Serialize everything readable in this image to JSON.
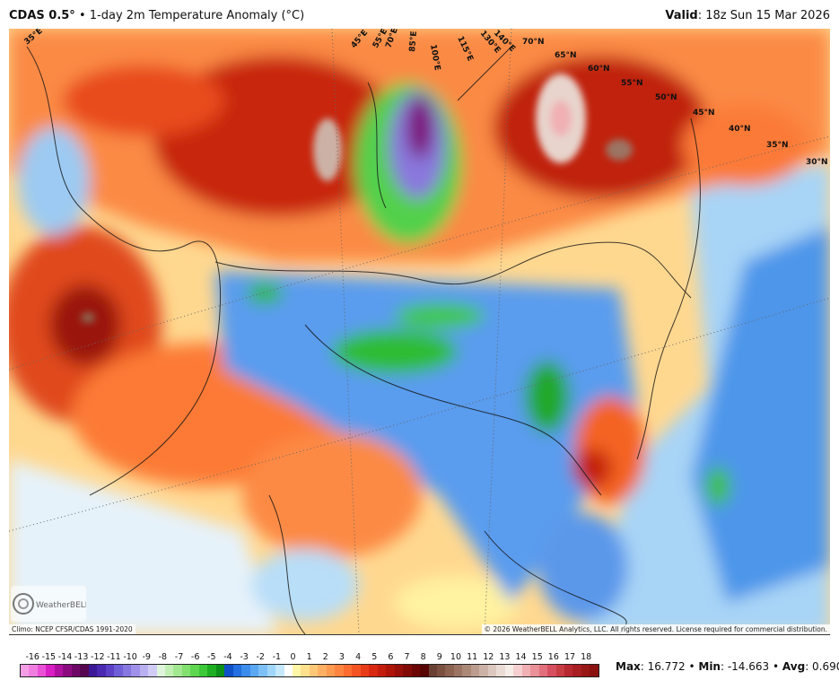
{
  "header": {
    "model": "CDAS 0.5°",
    "separator": "•",
    "title": "1-day 2m Temperature Anomaly (°C)",
    "valid_label": "Valid",
    "valid_time": "18z Sun 15 Mar 2026"
  },
  "map": {
    "longitude_labels": [
      "35°E",
      "45°E",
      "55°E",
      "70°E",
      "85°E",
      "100°E",
      "115°E",
      "130°E",
      "140°E"
    ],
    "latitude_labels": [
      "70°N",
      "65°N",
      "60°N",
      "55°N",
      "50°N",
      "45°N",
      "40°N",
      "35°N",
      "30°N"
    ],
    "climo": "Climo: NCEP CFSR/CDAS 1991-2020",
    "copyright": "© 2026 WeatherBELL Analytics, LLC. All rights reserved. License required for commercial distribution.",
    "logo": "WeatherBELL"
  },
  "colorbar": {
    "labels": [
      "-16",
      "-15",
      "-14",
      "-13",
      "-12",
      "-11",
      "-10",
      "-9",
      "-8",
      "-7",
      "-6",
      "-5",
      "-4",
      "-3",
      "-2",
      "-1",
      "0",
      "1",
      "2",
      "3",
      "4",
      "5",
      "6",
      "7",
      "8",
      "9",
      "10",
      "11",
      "12",
      "13",
      "14",
      "15",
      "16",
      "17",
      "18"
    ],
    "colors": [
      "#f59ee6",
      "#f07ee0",
      "#ea50d6",
      "#d81ec4",
      "#b0109e",
      "#8c0a80",
      "#6e0866",
      "#560650",
      "#3a1896",
      "#4a28b0",
      "#5c40c8",
      "#7060d8",
      "#8678e0",
      "#a090ea",
      "#b8b0f0",
      "#d0ccf6",
      "#e0f6dc",
      "#c2f0b4",
      "#a2e890",
      "#82e06e",
      "#5ed650",
      "#3cc838",
      "#1eae22",
      "#0c9018",
      "#1050c8",
      "#2470e0",
      "#3c8cec",
      "#5aa8f2",
      "#7cc0f6",
      "#a0d6fa",
      "#c6e8fc",
      "#ffffff",
      "#fff6a8",
      "#ffe08c",
      "#ffc878",
      "#ffb064",
      "#ff9a50",
      "#ff8440",
      "#fc6c30",
      "#f45424",
      "#e83c18",
      "#d82810",
      "#c41c0c",
      "#ae1408",
      "#980e08",
      "#820a06",
      "#6c0604",
      "#560404",
      "#6a4034",
      "#7c5040",
      "#8c6250",
      "#9c7464",
      "#ac8878",
      "#bc9c8e",
      "#ccb2a6",
      "#dcc8be",
      "#eadcd4",
      "#f6ece8",
      "#f6d0d0",
      "#f0b0b4",
      "#ea9098",
      "#e2707c",
      "#d65060",
      "#c83c44",
      "#b82830",
      "#a81e22",
      "#981816",
      "#8a1210"
    ]
  },
  "stats": {
    "max_label": "Max",
    "max": "16.772",
    "min_label": "Min",
    "min": "-14.663",
    "avg_label": "Avg",
    "avg": "0.690",
    "sep": "•"
  }
}
